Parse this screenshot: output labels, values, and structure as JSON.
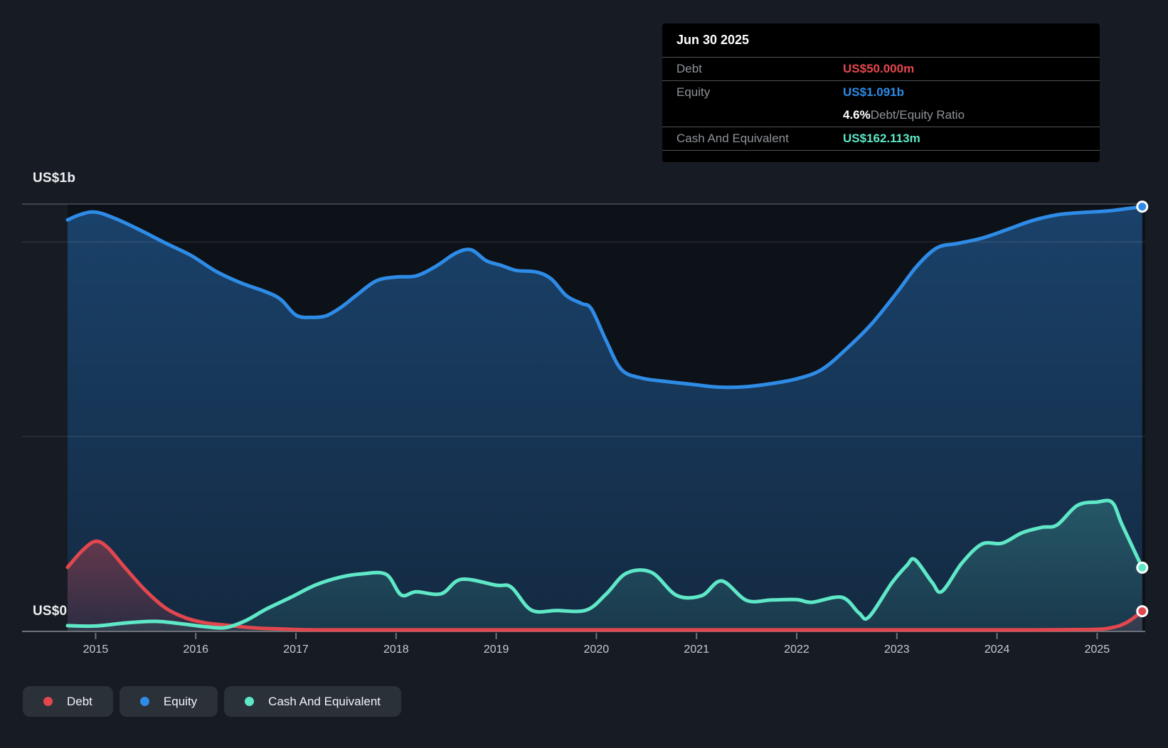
{
  "y_axis": {
    "top_label": "US$1b",
    "bottom_label": "US$0"
  },
  "x_axis": {
    "years": [
      "2015",
      "2016",
      "2017",
      "2018",
      "2019",
      "2020",
      "2021",
      "2022",
      "2023",
      "2024",
      "2025"
    ]
  },
  "tooltip": {
    "title": "Jun 30 2025",
    "debt_label": "Debt",
    "debt_value": "US$50.000m",
    "equity_label": "Equity",
    "equity_value": "US$1.091b",
    "ratio_value": "4.6%",
    "ratio_label": " Debt/Equity Ratio",
    "cash_label": "Cash And Equivalent",
    "cash_value": "US$162.113m"
  },
  "legend": [
    {
      "label": "Debt",
      "color_key": "debt"
    },
    {
      "label": "Equity",
      "color_key": "equity"
    },
    {
      "label": "Cash And Equivalent",
      "color_key": "cash"
    }
  ],
  "colors": {
    "debt": "#e2474e",
    "equity": "#2e8be6",
    "cash": "#5fe8c7",
    "page_bg": "#171c24",
    "plot_bg": "#0d1118",
    "grid_faint": "rgba(255,255,255,0.10)",
    "grid_top": "rgba(255,255,255,0.24)",
    "axis_line": "rgba(255,255,255,0.38)",
    "tick": "#6f747b"
  },
  "chart_data": {
    "type": "area",
    "title": "Debt, Equity and Cash history",
    "unit": "US$ millions",
    "x_domain_years": [
      2014.72,
      2025.48
    ],
    "y_domain_millions": [
      0,
      1097.7
    ],
    "gridline_values_millions": [
      500,
      1000
    ],
    "grid": "on",
    "legend_position": "bottom-left",
    "series": [
      {
        "name": "Equity",
        "color_key": "equity",
        "end_label": "US$1.091b",
        "points": [
          [
            2014.72,
            1057
          ],
          [
            2014.85,
            1071
          ],
          [
            2015.0,
            1077
          ],
          [
            2015.2,
            1060
          ],
          [
            2015.45,
            1030
          ],
          [
            2015.7,
            997
          ],
          [
            2015.95,
            966
          ],
          [
            2016.2,
            925
          ],
          [
            2016.45,
            895
          ],
          [
            2016.7,
            872
          ],
          [
            2016.85,
            852
          ],
          [
            2017.0,
            812
          ],
          [
            2017.15,
            806
          ],
          [
            2017.3,
            810
          ],
          [
            2017.45,
            832
          ],
          [
            2017.6,
            862
          ],
          [
            2017.8,
            900
          ],
          [
            2018.0,
            910
          ],
          [
            2018.2,
            913
          ],
          [
            2018.4,
            938
          ],
          [
            2018.6,
            972
          ],
          [
            2018.75,
            980
          ],
          [
            2018.9,
            952
          ],
          [
            2019.05,
            940
          ],
          [
            2019.2,
            927
          ],
          [
            2019.4,
            923
          ],
          [
            2019.55,
            905
          ],
          [
            2019.7,
            862
          ],
          [
            2019.85,
            842
          ],
          [
            2019.95,
            828
          ],
          [
            2020.1,
            745
          ],
          [
            2020.25,
            672
          ],
          [
            2020.45,
            650
          ],
          [
            2020.7,
            641
          ],
          [
            2020.95,
            634
          ],
          [
            2021.2,
            627
          ],
          [
            2021.45,
            627
          ],
          [
            2021.7,
            634
          ],
          [
            2022.0,
            648
          ],
          [
            2022.25,
            672
          ],
          [
            2022.5,
            726
          ],
          [
            2022.75,
            790
          ],
          [
            2023.0,
            870
          ],
          [
            2023.2,
            938
          ],
          [
            2023.4,
            985
          ],
          [
            2023.6,
            996
          ],
          [
            2023.85,
            1010
          ],
          [
            2024.1,
            1032
          ],
          [
            2024.35,
            1055
          ],
          [
            2024.6,
            1070
          ],
          [
            2024.85,
            1076
          ],
          [
            2025.1,
            1080
          ],
          [
            2025.3,
            1086
          ],
          [
            2025.45,
            1091
          ]
        ]
      },
      {
        "name": "Debt",
        "color_key": "debt",
        "end_label": "US$50.000m",
        "points": [
          [
            2014.72,
            163
          ],
          [
            2014.87,
            207
          ],
          [
            2015.0,
            230
          ],
          [
            2015.12,
            214
          ],
          [
            2015.3,
            160
          ],
          [
            2015.5,
            103
          ],
          [
            2015.7,
            58
          ],
          [
            2015.9,
            33
          ],
          [
            2016.1,
            20
          ],
          [
            2016.35,
            13
          ],
          [
            2016.6,
            7
          ],
          [
            2016.9,
            4
          ],
          [
            2017.2,
            2
          ],
          [
            2017.8,
            2
          ],
          [
            2018.5,
            2
          ],
          [
            2019.2,
            2
          ],
          [
            2020.0,
            2
          ],
          [
            2020.8,
            2
          ],
          [
            2021.6,
            2
          ],
          [
            2022.4,
            2
          ],
          [
            2023.2,
            2
          ],
          [
            2024.0,
            2
          ],
          [
            2024.9,
            3
          ],
          [
            2025.15,
            8
          ],
          [
            2025.3,
            22
          ],
          [
            2025.45,
            50
          ]
        ]
      },
      {
        "name": "Cash And Equivalent",
        "color_key": "cash",
        "end_label": "US$162.113m",
        "points": [
          [
            2014.72,
            13
          ],
          [
            2015.0,
            12
          ],
          [
            2015.3,
            20
          ],
          [
            2015.6,
            24
          ],
          [
            2015.85,
            18
          ],
          [
            2016.1,
            10
          ],
          [
            2016.3,
            8
          ],
          [
            2016.5,
            26
          ],
          [
            2016.7,
            55
          ],
          [
            2016.95,
            86
          ],
          [
            2017.2,
            118
          ],
          [
            2017.45,
            138
          ],
          [
            2017.65,
            146
          ],
          [
            2017.9,
            145
          ],
          [
            2018.05,
            92
          ],
          [
            2018.2,
            100
          ],
          [
            2018.45,
            95
          ],
          [
            2018.65,
            132
          ],
          [
            2019.0,
            117
          ],
          [
            2019.15,
            112
          ],
          [
            2019.35,
            53
          ],
          [
            2019.6,
            52
          ],
          [
            2019.9,
            53
          ],
          [
            2020.1,
            95
          ],
          [
            2020.3,
            148
          ],
          [
            2020.55,
            150
          ],
          [
            2020.8,
            91
          ],
          [
            2021.05,
            90
          ],
          [
            2021.25,
            128
          ],
          [
            2021.5,
            78
          ],
          [
            2021.75,
            79
          ],
          [
            2022.0,
            80
          ],
          [
            2022.15,
            73
          ],
          [
            2022.45,
            86
          ],
          [
            2022.62,
            46
          ],
          [
            2022.72,
            35
          ],
          [
            2022.95,
            123
          ],
          [
            2023.1,
            168
          ],
          [
            2023.18,
            183
          ],
          [
            2023.35,
            125
          ],
          [
            2023.45,
            101
          ],
          [
            2023.65,
            174
          ],
          [
            2023.85,
            223
          ],
          [
            2024.05,
            225
          ],
          [
            2024.25,
            252
          ],
          [
            2024.45,
            266
          ],
          [
            2024.6,
            272
          ],
          [
            2024.8,
            322
          ],
          [
            2025.0,
            331
          ],
          [
            2025.15,
            330
          ],
          [
            2025.25,
            272
          ],
          [
            2025.45,
            162.113
          ]
        ]
      }
    ]
  }
}
